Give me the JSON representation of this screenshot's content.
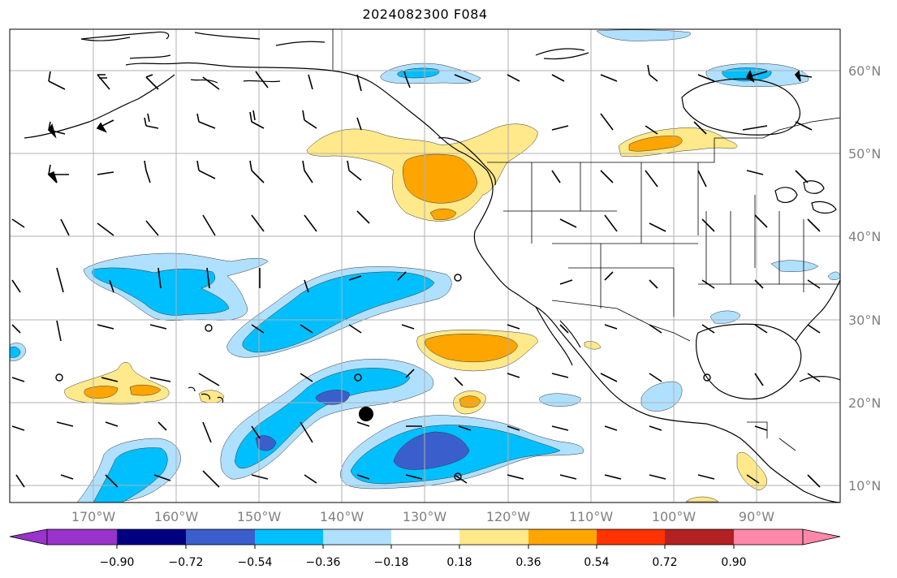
{
  "title": "2024082300 F084",
  "lon_labels": [
    "170°W",
    "160°W",
    "150°W",
    "140°W",
    "130°W",
    "120°W",
    "110°W",
    "100°W",
    "90°W"
  ],
  "lat_labels": [
    "60°N",
    "50°N",
    "40°N",
    "30°N",
    "20°N",
    "10°N"
  ],
  "colorbar": {
    "tick_labels": [
      "−0.90",
      "−0.72",
      "−0.54",
      "−0.36",
      "−0.18",
      "0.18",
      "0.36",
      "0.54",
      "0.72",
      "0.90"
    ],
    "colors": [
      "#9933cc",
      "#000080",
      "#3a5fcd",
      "#00bfff",
      "#b0e0ff",
      "#ffffff",
      "#ffe98a",
      "#ffa500",
      "#ff3300",
      "#b22222",
      "#ff88aa",
      "#ff88aa"
    ]
  },
  "palette": {
    "neg_strong": "#3a5fcd",
    "neg_mid": "#00bfff",
    "neg_weak": "#b0e0ff",
    "pos_weak": "#ffe98a",
    "pos_mid": "#ffa500",
    "grid": "#b0b0b0",
    "coast": "#000000"
  },
  "marker": {
    "label": "storm-center-dot"
  }
}
